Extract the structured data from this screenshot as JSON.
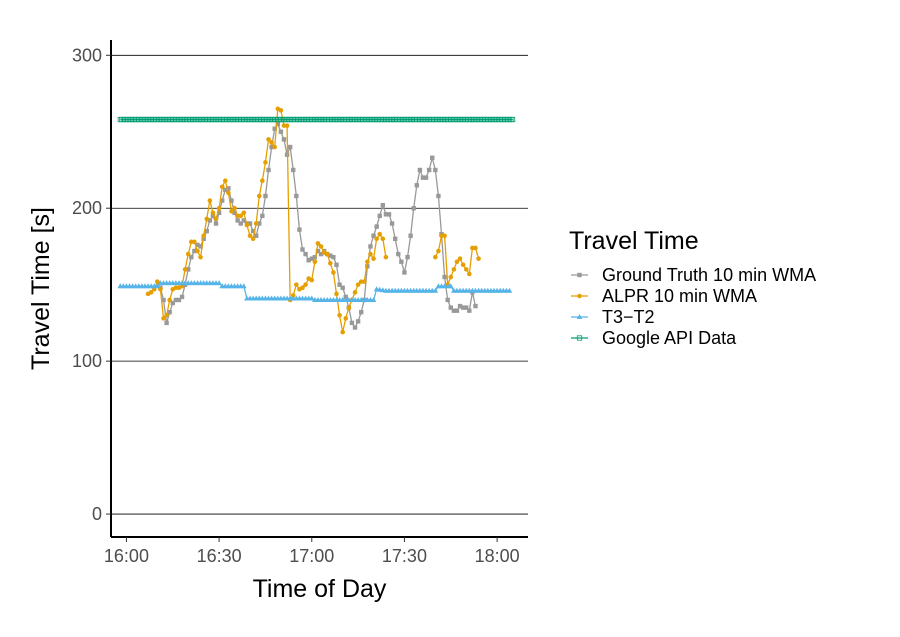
{
  "chart_data": {
    "type": "line",
    "xlabel": "Time of Day",
    "ylabel": "Travel Time [s]",
    "xlim": [
      "15:55",
      "18:10"
    ],
    "ylim": [
      -15,
      310
    ],
    "x_ticks": [
      "16:00",
      "16:30",
      "17:00",
      "17:30",
      "18:00"
    ],
    "y_ticks": [
      0,
      100,
      200,
      300
    ],
    "grid": "horizontal major lines only",
    "legend": {
      "title": "Travel Time",
      "position": "right",
      "entries": [
        "Ground Truth 10 min WMA",
        "ALPR 10 min WMA",
        "T3−T2",
        "Google API Data"
      ]
    },
    "series": [
      {
        "name": "Ground Truth 10 min WMA",
        "color": "#999999",
        "marker": "square",
        "points": [
          [
            "16:11",
            148
          ],
          [
            "16:12",
            140
          ],
          [
            "16:13",
            125
          ],
          [
            "16:14",
            132
          ],
          [
            "16:15",
            138
          ],
          [
            "16:16",
            140
          ],
          [
            "16:17",
            140
          ],
          [
            "16:18",
            142
          ],
          [
            "16:19",
            150
          ],
          [
            "16:20",
            160
          ],
          [
            "16:21",
            168
          ],
          [
            "16:22",
            172
          ],
          [
            "16:23",
            176
          ],
          [
            "16:24",
            175
          ],
          [
            "16:25",
            180
          ],
          [
            "16:26",
            185
          ],
          [
            "16:27",
            192
          ],
          [
            "16:28",
            195
          ],
          [
            "16:29",
            190
          ],
          [
            "16:30",
            197
          ],
          [
            "16:31",
            205
          ],
          [
            "16:32",
            212
          ],
          [
            "16:33",
            213
          ],
          [
            "16:34",
            205
          ],
          [
            "16:35",
            197
          ],
          [
            "16:36",
            192
          ],
          [
            "16:37",
            190
          ],
          [
            "16:38",
            192
          ],
          [
            "16:39",
            190
          ],
          [
            "16:40",
            190
          ],
          [
            "16:41",
            185
          ],
          [
            "16:42",
            182
          ],
          [
            "16:43",
            190
          ],
          [
            "16:44",
            195
          ],
          [
            "16:45",
            208
          ],
          [
            "16:46",
            225
          ],
          [
            "16:47",
            240
          ],
          [
            "16:48",
            252
          ],
          [
            "16:49",
            255
          ],
          [
            "16:50",
            250
          ],
          [
            "16:51",
            245
          ],
          [
            "16:52",
            235
          ],
          [
            "16:53",
            240
          ],
          [
            "16:54",
            225
          ],
          [
            "16:55",
            208
          ],
          [
            "16:56",
            186
          ],
          [
            "16:57",
            173
          ],
          [
            "16:58",
            170
          ],
          [
            "16:59",
            166
          ],
          [
            "17:00",
            167
          ],
          [
            "17:01",
            168
          ],
          [
            "17:02",
            172
          ],
          [
            "17:03",
            170
          ],
          [
            "17:04",
            172
          ],
          [
            "17:05",
            170
          ],
          [
            "17:06",
            169
          ],
          [
            "17:07",
            168
          ],
          [
            "17:08",
            163
          ],
          [
            "17:09",
            150
          ],
          [
            "17:10",
            148
          ],
          [
            "17:11",
            142
          ],
          [
            "17:12",
            135
          ],
          [
            "17:13",
            125
          ],
          [
            "17:14",
            122
          ],
          [
            "17:15",
            126
          ],
          [
            "17:16",
            132
          ],
          [
            "17:17",
            140
          ],
          [
            "17:18",
            162
          ],
          [
            "17:19",
            175
          ],
          [
            "17:20",
            182
          ],
          [
            "17:21",
            188
          ],
          [
            "17:22",
            195
          ],
          [
            "17:23",
            202
          ],
          [
            "17:24",
            196
          ],
          [
            "17:25",
            196
          ],
          [
            "17:26",
            190
          ],
          [
            "17:27",
            180
          ],
          [
            "17:28",
            170
          ],
          [
            "17:29",
            165
          ],
          [
            "17:30",
            158
          ],
          [
            "17:31",
            168
          ],
          [
            "17:32",
            182
          ],
          [
            "17:33",
            200
          ],
          [
            "17:34",
            215
          ],
          [
            "17:35",
            225
          ],
          [
            "17:36",
            220
          ],
          [
            "17:37",
            220
          ],
          [
            "17:38",
            225
          ],
          [
            "17:39",
            233
          ],
          [
            "17:40",
            225
          ],
          [
            "17:41",
            208
          ],
          [
            "17:42",
            183
          ],
          [
            "17:43",
            155
          ],
          [
            "17:44",
            140
          ],
          [
            "17:45",
            135
          ],
          [
            "17:46",
            133
          ],
          [
            "17:47",
            133
          ],
          [
            "17:48",
            136
          ],
          [
            "17:49",
            135
          ],
          [
            "17:50",
            135
          ],
          [
            "17:51",
            133
          ],
          [
            "17:52",
            145
          ],
          [
            "17:53",
            136
          ]
        ]
      },
      {
        "name": "ALPR 10 min WMA",
        "color": "#E69F00",
        "marker": "circle",
        "points": [
          [
            "16:07",
            144
          ],
          [
            "16:08",
            145
          ],
          [
            "16:09",
            147
          ],
          [
            "16:10",
            152
          ],
          [
            "16:11",
            147
          ],
          [
            "16:12",
            128
          ],
          [
            "16:13",
            130
          ],
          [
            "16:14",
            140
          ],
          [
            "16:15",
            147
          ],
          [
            "16:16",
            148
          ],
          [
            "16:17",
            148
          ],
          [
            "16:18",
            149
          ],
          [
            "16:19",
            160
          ],
          [
            "16:20",
            170
          ],
          [
            "16:21",
            178
          ],
          [
            "16:22",
            178
          ],
          [
            "16:23",
            172
          ],
          [
            "16:24",
            168
          ],
          [
            "16:25",
            182
          ],
          [
            "16:26",
            193
          ],
          [
            "16:27",
            205
          ],
          [
            "16:28",
            197
          ],
          [
            "16:29",
            193
          ],
          [
            "16:30",
            200
          ],
          [
            "16:31",
            214
          ],
          [
            "16:32",
            218
          ],
          [
            "16:33",
            210
          ],
          [
            "16:34",
            198
          ],
          [
            "16:35",
            200
          ],
          [
            "16:36",
            195
          ],
          [
            "16:37",
            195
          ],
          [
            "16:38",
            197
          ],
          [
            "16:39",
            189
          ],
          [
            "16:40",
            182
          ],
          [
            "16:41",
            180
          ],
          [
            "16:42",
            190
          ],
          [
            "16:43",
            208
          ],
          [
            "16:44",
            218
          ],
          [
            "16:45",
            230
          ],
          [
            "16:46",
            245
          ],
          [
            "16:47",
            243
          ],
          [
            "16:48",
            240
          ],
          [
            "16:49",
            265
          ],
          [
            "16:50",
            264
          ],
          [
            "16:51",
            254
          ],
          [
            "16:52",
            254
          ],
          [
            "16:53",
            140
          ],
          [
            "16:54",
            143
          ],
          [
            "16:55",
            150
          ],
          [
            "16:56",
            147
          ],
          [
            "16:57",
            148
          ],
          [
            "16:58",
            150
          ],
          [
            "16:59",
            154
          ],
          [
            "17:00",
            153
          ],
          [
            "17:01",
            165
          ],
          [
            "17:02",
            177
          ],
          [
            "17:03",
            175
          ],
          [
            "17:04",
            171
          ],
          [
            "17:05",
            170
          ],
          [
            "17:06",
            164
          ],
          [
            "17:07",
            158
          ],
          [
            "17:08",
            144
          ],
          [
            "17:09",
            130
          ],
          [
            "17:10",
            119
          ],
          [
            "17:11",
            128
          ],
          [
            "17:12",
            135
          ],
          [
            "17:13",
            140
          ],
          [
            "17:14",
            145
          ],
          [
            "17:15",
            150
          ],
          [
            "17:16",
            152
          ],
          [
            "17:17",
            152
          ],
          [
            "17:18",
            165
          ],
          [
            "17:19",
            170
          ],
          [
            "17:20",
            167
          ],
          [
            "17:21",
            180
          ],
          [
            "17:22",
            183
          ],
          [
            "17:23",
            180
          ],
          [
            "17:24",
            168
          ],
          [
            "17:25",
            null
          ],
          [
            "17:40",
            168
          ],
          [
            "17:41",
            172
          ],
          [
            "17:42",
            182
          ],
          [
            "17:43",
            182
          ],
          [
            "17:44",
            150
          ],
          [
            "17:45",
            155
          ],
          [
            "17:46",
            160
          ],
          [
            "17:47",
            165
          ],
          [
            "17:48",
            167
          ],
          [
            "17:49",
            163
          ],
          [
            "17:50",
            160
          ],
          [
            "17:51",
            157
          ],
          [
            "17:52",
            174
          ],
          [
            "17:53",
            174
          ],
          [
            "17:54",
            167
          ]
        ]
      },
      {
        "name": "T3−T2",
        "color": "#56B4E9",
        "marker": "triangle",
        "points": [
          [
            "15:58",
            149
          ],
          [
            "16:10",
            149
          ],
          [
            "16:11",
            151
          ],
          [
            "16:20",
            151
          ],
          [
            "16:30",
            151
          ],
          [
            "16:31",
            149
          ],
          [
            "16:38",
            149
          ],
          [
            "16:39",
            141
          ],
          [
            "16:50",
            141
          ],
          [
            "17:00",
            141
          ],
          [
            "17:01",
            140
          ],
          [
            "17:10",
            140
          ],
          [
            "17:20",
            140
          ],
          [
            "17:21",
            147
          ],
          [
            "17:24",
            146
          ],
          [
            "17:40",
            146
          ],
          [
            "17:41",
            149
          ],
          [
            "17:45",
            149
          ],
          [
            "17:46",
            146
          ],
          [
            "18:04",
            146
          ]
        ]
      },
      {
        "name": "Google API Data",
        "color": "#009E73",
        "marker": "open-square",
        "points": [
          [
            "15:58",
            258
          ],
          [
            "18:05",
            258
          ]
        ]
      }
    ]
  }
}
